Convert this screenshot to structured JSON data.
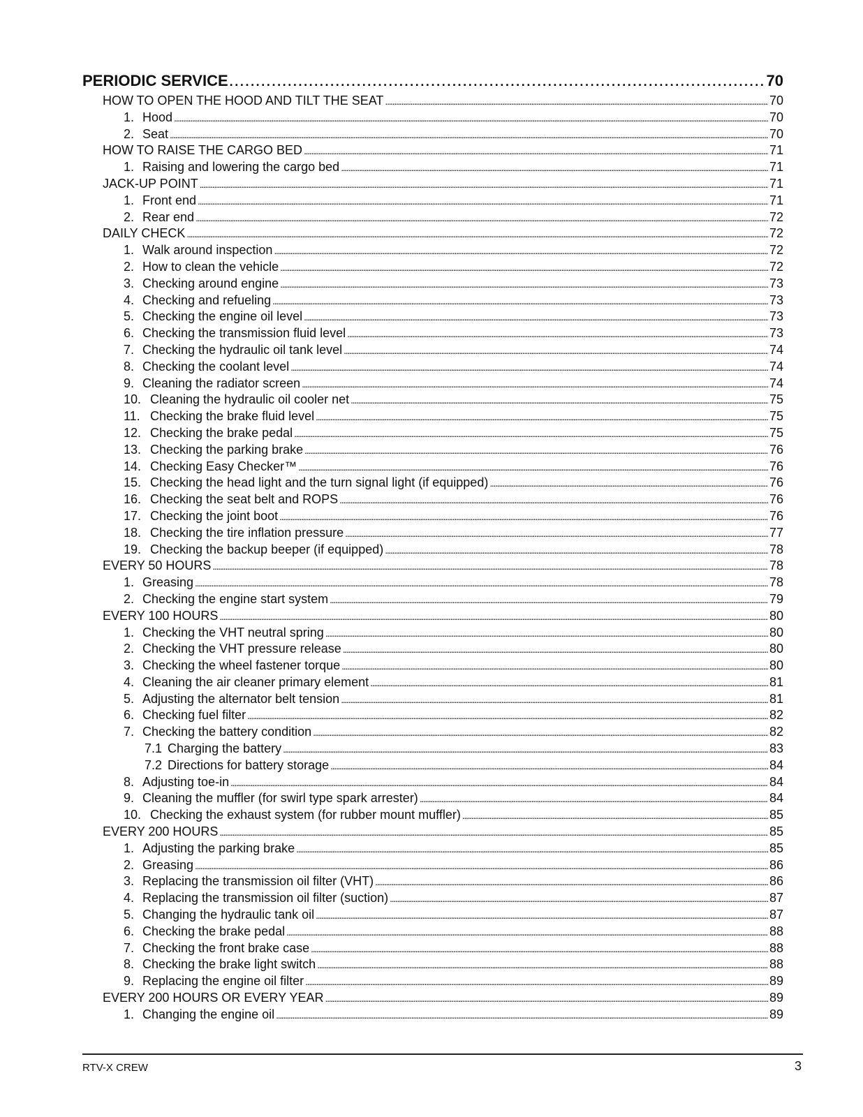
{
  "toc": {
    "title": {
      "text": "PERIODIC SERVICE",
      "page": "70"
    },
    "entries": [
      {
        "level": 1,
        "num": "",
        "text": "HOW TO OPEN THE HOOD AND TILT THE SEAT",
        "page": "70"
      },
      {
        "level": 2,
        "num": "1.",
        "text": "Hood",
        "page": "70"
      },
      {
        "level": 2,
        "num": "2.",
        "text": "Seat",
        "page": "70"
      },
      {
        "level": 1,
        "num": "",
        "text": "HOW TO RAISE THE CARGO BED",
        "page": "71"
      },
      {
        "level": 2,
        "num": "1.",
        "text": "Raising and lowering the cargo bed",
        "page": "71"
      },
      {
        "level": 1,
        "num": "",
        "text": "JACK-UP POINT",
        "page": "71"
      },
      {
        "level": 2,
        "num": "1.",
        "text": "Front end",
        "page": "71"
      },
      {
        "level": 2,
        "num": "2.",
        "text": "Rear end",
        "page": "72"
      },
      {
        "level": 1,
        "num": "",
        "text": "DAILY CHECK",
        "page": "72"
      },
      {
        "level": 2,
        "num": "1.",
        "text": "Walk around inspection",
        "page": "72"
      },
      {
        "level": 2,
        "num": "2.",
        "text": "How to clean the vehicle",
        "page": "72"
      },
      {
        "level": 2,
        "num": "3.",
        "text": "Checking around engine",
        "page": "73"
      },
      {
        "level": 2,
        "num": "4.",
        "text": "Checking and refueling",
        "page": "73"
      },
      {
        "level": 2,
        "num": "5.",
        "text": "Checking the engine oil level",
        "page": "73"
      },
      {
        "level": 2,
        "num": "6.",
        "text": "Checking the transmission fluid level",
        "page": "73"
      },
      {
        "level": 2,
        "num": "7.",
        "text": "Checking the hydraulic oil tank level",
        "page": "74"
      },
      {
        "level": 2,
        "num": "8.",
        "text": "Checking the coolant level",
        "page": "74"
      },
      {
        "level": 2,
        "num": "9.",
        "text": "Cleaning the radiator screen",
        "page": "74"
      },
      {
        "level": 2,
        "num": "10.",
        "text": "Cleaning the hydraulic oil cooler net",
        "page": "75"
      },
      {
        "level": 2,
        "num": "11.",
        "text": "Checking the brake fluid level",
        "page": "75"
      },
      {
        "level": 2,
        "num": "12.",
        "text": "Checking the brake pedal",
        "page": "75"
      },
      {
        "level": 2,
        "num": "13.",
        "text": "Checking the parking brake",
        "page": "76"
      },
      {
        "level": 2,
        "num": "14.",
        "text": "Checking Easy Checker™",
        "page": "76"
      },
      {
        "level": 2,
        "num": "15.",
        "text": "Checking the head light and the turn signal light (if equipped)",
        "page": "76"
      },
      {
        "level": 2,
        "num": "16.",
        "text": "Checking the seat belt and ROPS",
        "page": "76"
      },
      {
        "level": 2,
        "num": "17.",
        "text": "Checking the joint boot",
        "page": "76"
      },
      {
        "level": 2,
        "num": "18.",
        "text": "Checking the tire inflation pressure",
        "page": "77"
      },
      {
        "level": 2,
        "num": "19.",
        "text": "Checking the backup beeper (if equipped)",
        "page": "78"
      },
      {
        "level": 1,
        "num": "",
        "text": "EVERY 50 HOURS",
        "page": "78"
      },
      {
        "level": 2,
        "num": "1.",
        "text": "Greasing",
        "page": "78"
      },
      {
        "level": 2,
        "num": "2.",
        "text": "Checking the engine start system",
        "page": "79"
      },
      {
        "level": 1,
        "num": "",
        "text": "EVERY 100 HOURS",
        "page": "80"
      },
      {
        "level": 2,
        "num": "1.",
        "text": "Checking the VHT neutral spring",
        "page": "80"
      },
      {
        "level": 2,
        "num": "2.",
        "text": "Checking the VHT pressure release",
        "page": "80"
      },
      {
        "level": 2,
        "num": "3.",
        "text": "Checking the wheel fastener torque",
        "page": "80"
      },
      {
        "level": 2,
        "num": "4.",
        "text": "Cleaning the air cleaner primary element",
        "page": "81"
      },
      {
        "level": 2,
        "num": "5.",
        "text": "Adjusting the alternator belt tension",
        "page": "81"
      },
      {
        "level": 2,
        "num": "6.",
        "text": "Checking fuel filter",
        "page": "82"
      },
      {
        "level": 2,
        "num": "7.",
        "text": "Checking the battery condition",
        "page": "82"
      },
      {
        "level": 3,
        "num": "7.1",
        "text": "Charging the battery",
        "page": "83"
      },
      {
        "level": 3,
        "num": "7.2",
        "text": "Directions for battery storage",
        "page": "84"
      },
      {
        "level": 2,
        "num": "8.",
        "text": "Adjusting toe-in",
        "page": "84"
      },
      {
        "level": 2,
        "num": "9.",
        "text": "Cleaning the muffler (for swirl type spark arrester)",
        "page": "84"
      },
      {
        "level": 2,
        "num": "10.",
        "text": "Checking the exhaust system (for rubber mount muffler)",
        "page": "85"
      },
      {
        "level": 1,
        "num": "",
        "text": "EVERY 200 HOURS",
        "page": "85"
      },
      {
        "level": 2,
        "num": "1.",
        "text": "Adjusting the parking brake",
        "page": "85"
      },
      {
        "level": 2,
        "num": "2.",
        "text": "Greasing",
        "page": "86"
      },
      {
        "level": 2,
        "num": "3.",
        "text": "Replacing the transmission oil filter (VHT)",
        "page": "86"
      },
      {
        "level": 2,
        "num": "4.",
        "text": "Replacing the transmission oil filter (suction)",
        "page": "87"
      },
      {
        "level": 2,
        "num": "5.",
        "text": "Changing the hydraulic tank oil",
        "page": "87"
      },
      {
        "level": 2,
        "num": "6.",
        "text": "Checking the brake pedal",
        "page": "88"
      },
      {
        "level": 2,
        "num": "7.",
        "text": "Checking the front brake case",
        "page": "88"
      },
      {
        "level": 2,
        "num": "8.",
        "text": "Checking the brake light switch",
        "page": "88"
      },
      {
        "level": 2,
        "num": "9.",
        "text": "Replacing the engine oil filter",
        "page": "89"
      },
      {
        "level": 1,
        "num": "",
        "text": "EVERY 200 HOURS OR EVERY YEAR",
        "page": "89"
      },
      {
        "level": 2,
        "num": "1.",
        "text": "Changing the engine oil",
        "page": "89"
      }
    ]
  },
  "footer": {
    "model": "RTV-X CREW",
    "page_number": "3"
  }
}
